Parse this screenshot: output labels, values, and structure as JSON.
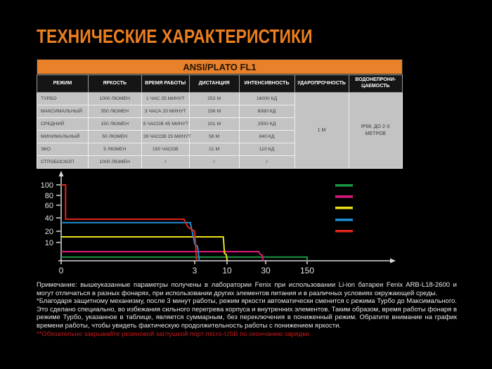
{
  "title": "ТЕХНИЧЕСКИЕ ХАРАКТЕРИСТИКИ",
  "colors": {
    "background": "#000000",
    "accent_orange": "#E8812A",
    "title_orange": "#EC7F1F",
    "table_row_gray": "#C3C3C3",
    "table_header_black": "#151515",
    "note_warning_red": "#C61A1A",
    "axis_gray": "#D8D8D8"
  },
  "spec_table": {
    "banner": "ANSI/PLATO FL1",
    "headers": [
      "РЕЖИМ",
      "ЯРКОСТЬ",
      "ВРЕМЯ РАБОТЫ",
      "ДИСТАНЦИЯ",
      "ИНТЕНСИВНОСТЬ",
      "УДАРОПРОЧНОСТЬ",
      "ВОДОНЕПРОНИ-ЦАЕМОСТЬ"
    ],
    "rows": [
      [
        "ТУРБО",
        "1000 ЛЮМЕН",
        "1 ЧАС 25 МИНУТ",
        "253 М",
        "16000 КД"
      ],
      [
        "МАКСИМАЛЬНЫЙ",
        "350 ЛЮМЕН",
        "3 ЧАСА 20 МИНУТ",
        "156 М",
        "6080 КД"
      ],
      [
        "СРЕДНИЙ",
        "150 ЛЮМЕН",
        "8 ЧАСОВ 45 МИНУТ",
        "101 М",
        "2550 КД"
      ],
      [
        "МИНИМАЛЬНЫЙ",
        "50 ЛЮМЕН",
        "28 ЧАСОВ 25 МИНУТ",
        "58 М",
        "840 КД"
      ],
      [
        "ЭКО",
        "5 ЛЮМЕН",
        "150 ЧАСОВ",
        "21 М",
        "110 КД"
      ],
      [
        "СТРОБОСКОП",
        "1000 ЛЮМЕН",
        "/",
        "/",
        "/"
      ]
    ],
    "impact_resistance": "1 М",
    "waterproofness": "IP68, ДО 2-Х МЕТРОВ"
  },
  "chart_data": {
    "type": "line",
    "title": "",
    "xlabel": "",
    "ylabel": "",
    "x_unit": "hours",
    "y_unit": "percent_output",
    "x_scale": "compressed-log-like",
    "grid": false,
    "legend_position": "right",
    "legend_has_text": false,
    "x_ticks": [
      0,
      3,
      10,
      30,
      150
    ],
    "y_ticks": [
      100,
      80,
      60,
      40,
      20,
      10
    ],
    "series": [
      {
        "id": "eco",
        "color": "#1B9642",
        "points": [
          [
            0,
            2
          ],
          [
            150,
            2
          ],
          [
            150,
            0
          ]
        ]
      },
      {
        "id": "min",
        "color": "#DE1A7D",
        "points": [
          [
            0,
            5
          ],
          [
            26.4,
            5
          ],
          [
            27.2,
            3.5
          ],
          [
            28.2,
            3
          ],
          [
            28.6,
            0
          ]
        ]
      },
      {
        "id": "mid",
        "color": "#EBE01A",
        "points": [
          [
            0,
            15
          ],
          [
            9.2,
            15
          ],
          [
            9.45,
            4
          ],
          [
            9.8,
            3.5
          ],
          [
            10.15,
            0
          ]
        ]
      },
      {
        "id": "max",
        "color": "#1F8FD5",
        "points": [
          [
            0,
            33
          ],
          [
            2.9,
            33
          ],
          [
            3.05,
            9
          ],
          [
            3.6,
            8
          ],
          [
            4.0,
            0
          ]
        ]
      },
      {
        "id": "turbo",
        "color": "#E1251B",
        "points": [
          [
            0,
            100
          ],
          [
            0.1,
            100
          ],
          [
            0.1,
            38
          ],
          [
            2.76,
            38
          ],
          [
            2.85,
            26
          ],
          [
            3.0,
            20
          ],
          [
            3.3,
            4
          ],
          [
            3.42,
            0
          ]
        ]
      }
    ],
    "legend_order": [
      "eco",
      "min",
      "mid",
      "max",
      "turbo"
    ]
  },
  "notes": {
    "note1": "Примечание: вышеуказанные параметры получены в лаборатории Fenix при использовании Li-ion батареи Fenix ARB-L18-2600 и могут отличаться в разных фонарях, при использовании других элементов питания и в различных условиях окружающей среды.",
    "note2": "*Благодаря защитному механизму, после 3 минут работы, режим яркости автоматически сменится с режима Турбо до Максимального. Это сделано специально, во избежания сильного перегрева корпуса и внутренних элементов. Таким образом, время работы фонаря в режиме Турбо, указанное в таблице, является суммарным, без переключения в пониженный режим. Обратите внимание на график времени работы, чтобы увидеть фактическую продолжительность работы с понижением яркости.",
    "note3": "**Обязательно закрывайте резиновой заглушкой порт micro-USB по окончанию зарядки."
  }
}
